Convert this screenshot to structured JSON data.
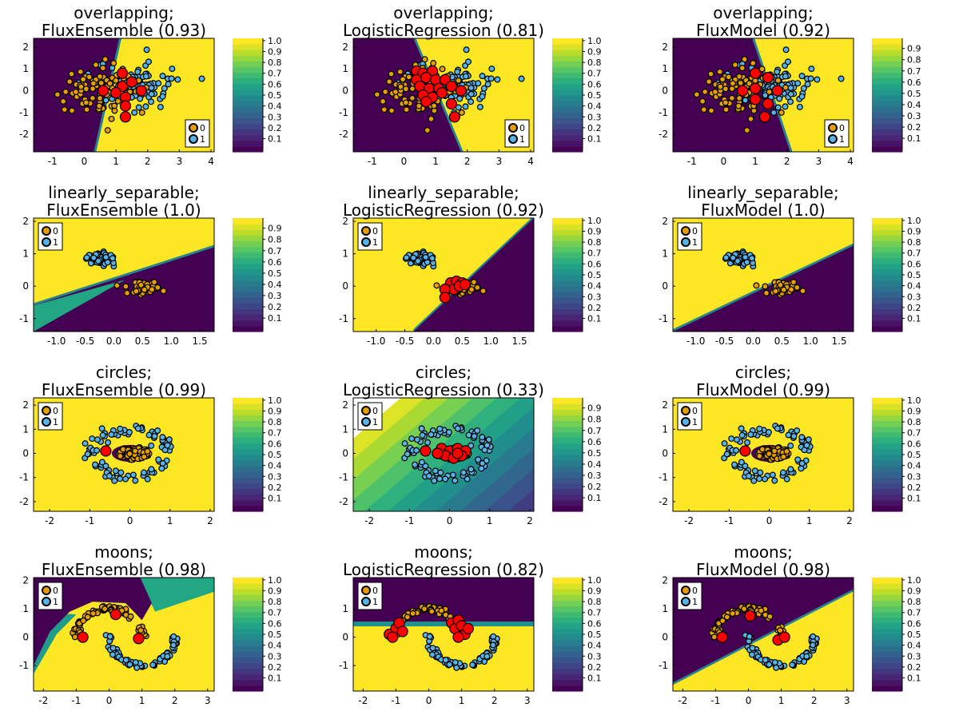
{
  "colors": {
    "class0": "#e69f00",
    "class1": "#56b4e9",
    "highlight": "#ff0000",
    "viridis_dark": "#440154",
    "viridis_yellow": "#fde725"
  },
  "chart_data": [
    {
      "type": "scatter",
      "dataset": "overlapping",
      "model": "FluxEnsemble",
      "title_line1": "overlapping;",
      "title_line2": "FluxEnsemble (0.93)",
      "xlim": [
        -1.6,
        4.1
      ],
      "ylim": [
        -2.8,
        2.4
      ],
      "xticks": [
        -1,
        0,
        1,
        2,
        3,
        4
      ],
      "yticks": [
        -2,
        -1,
        0,
        1,
        2
      ],
      "legend_loc": "bottom-right",
      "legend": [
        "0",
        "1"
      ],
      "colorbar_ticks": [
        "1.0",
        "0.9",
        "0.8",
        "0.7",
        "0.6",
        "0.5",
        "0.4",
        "0.3",
        "0.2",
        "0.1"
      ],
      "colorbar_max": 1.0,
      "boundary": {
        "kind": "line",
        "p1": [
          1.1,
          2.4
        ],
        "p2": [
          0.3,
          -2.8
        ],
        "side0": "left"
      },
      "highlights": [
        [
          1.2,
          0.8
        ],
        [
          1.5,
          0.4
        ],
        [
          1.2,
          0.2
        ],
        [
          0.6,
          0
        ],
        [
          1.0,
          -0.1
        ],
        [
          1.3,
          -0.3
        ],
        [
          1.8,
          0
        ],
        [
          1.3,
          -0.7
        ],
        [
          1.3,
          -1.2
        ]
      ]
    },
    {
      "type": "scatter",
      "dataset": "overlapping",
      "model": "LogisticRegression",
      "title_line1": "overlapping;",
      "title_line2": "LogisticRegression (0.81)",
      "xlim": [
        -1.6,
        4.1
      ],
      "ylim": [
        -2.8,
        2.4
      ],
      "xticks": [
        -1,
        0,
        1,
        2,
        3,
        4
      ],
      "yticks": [
        -2,
        -1,
        0,
        1,
        2
      ],
      "legend_loc": "bottom-right",
      "legend": [
        "0",
        "1"
      ],
      "colorbar_ticks": [
        "1.0",
        "0.9",
        "0.8",
        "0.7",
        "0.6",
        "0.5",
        "0.4",
        "0.3",
        "0.2",
        "0.1"
      ],
      "colorbar_max": 1.0,
      "boundary": {
        "kind": "line",
        "p1": [
          0.3,
          2.4
        ],
        "p2": [
          1.8,
          -2.8
        ],
        "side0": "left"
      },
      "highlights": [
        [
          0.4,
          0.9
        ],
        [
          0.6,
          0.8
        ],
        [
          0.9,
          0.9
        ],
        [
          0.4,
          0.5
        ],
        [
          0.7,
          0.6
        ],
        [
          1.0,
          0.5
        ],
        [
          1.3,
          0.5
        ],
        [
          0.5,
          0.2
        ],
        [
          0.8,
          0.1
        ],
        [
          1.1,
          0.1
        ],
        [
          0.6,
          -0.2
        ],
        [
          0.9,
          -0.3
        ],
        [
          1.2,
          -0.1
        ],
        [
          1.5,
          0.2
        ],
        [
          1.8,
          0
        ],
        [
          0.7,
          -0.5
        ],
        [
          1.5,
          -0.6
        ],
        [
          1.6,
          -1.2
        ]
      ]
    },
    {
      "type": "scatter",
      "dataset": "overlapping",
      "model": "FluxModel",
      "title_line1": "overlapping;",
      "title_line2": "FluxModel (0.92)",
      "xlim": [
        -1.6,
        4.1
      ],
      "ylim": [
        -2.8,
        2.4
      ],
      "xticks": [
        -1,
        0,
        1,
        2,
        3,
        4
      ],
      "yticks": [
        -2,
        -1,
        0,
        1,
        2
      ],
      "legend_loc": "bottom-right",
      "legend": [
        "0",
        "1"
      ],
      "colorbar_ticks": [
        "0.9",
        "0.8",
        "0.7",
        "0.6",
        "0.5",
        "0.4",
        "0.3",
        "0.2",
        "0.1"
      ],
      "colorbar_max": 0.97,
      "boundary": {
        "kind": "line",
        "p1": [
          0.9,
          2.4
        ],
        "p2": [
          2.1,
          -2.8
        ],
        "side0": "left"
      },
      "highlights": [
        [
          1.0,
          0.8
        ],
        [
          1.4,
          0.6
        ],
        [
          0.6,
          0
        ],
        [
          1.0,
          0.1
        ],
        [
          1.7,
          0
        ],
        [
          1.0,
          -0.4
        ],
        [
          1.4,
          -0.6
        ],
        [
          1.3,
          -1.2
        ]
      ]
    },
    {
      "type": "scatter",
      "dataset": "linearly_separable",
      "model": "FluxEnsemble",
      "title_line1": "linearly_separable;",
      "title_line2": "FluxEnsemble (1.0)",
      "xlim": [
        -1.4,
        1.75
      ],
      "ylim": [
        -1.4,
        2.1
      ],
      "xticks": [
        -1.0,
        -0.5,
        0.0,
        0.5,
        1.0,
        1.5
      ],
      "yticks": [
        -1,
        0,
        1,
        2
      ],
      "legend_loc": "top-left",
      "legend": [
        "0",
        "1"
      ],
      "colorbar_ticks": [
        "0.9",
        "0.8",
        "0.7",
        "0.6",
        "0.5",
        "0.4",
        "0.3",
        "0.2",
        "0.1"
      ],
      "colorbar_max": 0.97,
      "boundary": {
        "kind": "line",
        "p1": [
          -1.4,
          -0.6
        ],
        "p2": [
          1.75,
          1.2
        ],
        "side0": "below"
      },
      "highlights": []
    },
    {
      "type": "scatter",
      "dataset": "linearly_separable",
      "model": "LogisticRegression",
      "title_line1": "linearly_separable;",
      "title_line2": "LogisticRegression (0.92)",
      "xlim": [
        -1.4,
        1.75
      ],
      "ylim": [
        -1.4,
        2.1
      ],
      "xticks": [
        -1.0,
        -0.5,
        0.0,
        0.5,
        1.0,
        1.5
      ],
      "yticks": [
        -1,
        0,
        1,
        2
      ],
      "legend_loc": "top-left",
      "legend": [
        "0",
        "1"
      ],
      "colorbar_ticks": [
        "1.0",
        "0.9",
        "0.8",
        "0.7",
        "0.6",
        "0.5",
        "0.4",
        "0.3",
        "0.2",
        "0.1"
      ],
      "colorbar_max": 1.0,
      "boundary": {
        "kind": "line",
        "p1": [
          -0.35,
          -1.4
        ],
        "p2": [
          1.75,
          2.1
        ],
        "side0": "below"
      },
      "highlights": [
        [
          0.3,
          0.1
        ],
        [
          0.4,
          0.15
        ],
        [
          0.5,
          0.1
        ],
        [
          0.35,
          -0.1
        ],
        [
          0.45,
          0.0
        ],
        [
          0.2,
          -0.1
        ],
        [
          0.55,
          0.05
        ],
        [
          0.2,
          -0.35
        ]
      ]
    },
    {
      "type": "scatter",
      "dataset": "linearly_separable",
      "model": "FluxModel",
      "title_line1": "linearly_separable;",
      "title_line2": "FluxModel (1.0)",
      "xlim": [
        -1.4,
        1.75
      ],
      "ylim": [
        -1.4,
        2.1
      ],
      "xticks": [
        -1.0,
        -0.5,
        0.0,
        0.5,
        1.0,
        1.5
      ],
      "yticks": [
        -1,
        0,
        1,
        2
      ],
      "legend_loc": "top-left",
      "legend": [
        "0",
        "1"
      ],
      "colorbar_ticks": [
        "1.0",
        "0.9",
        "0.8",
        "0.7",
        "0.6",
        "0.5",
        "0.4",
        "0.3",
        "0.2",
        "0.1"
      ],
      "colorbar_max": 1.0,
      "boundary": {
        "kind": "line",
        "p1": [
          -1.4,
          -1.4
        ],
        "p2": [
          1.75,
          1.25
        ],
        "side0": "below"
      },
      "highlights": []
    },
    {
      "type": "scatter",
      "dataset": "circles",
      "model": "FluxEnsemble",
      "title_line1": "circles;",
      "title_line2": "FluxEnsemble (0.99)",
      "xlim": [
        -2.4,
        2.1
      ],
      "ylim": [
        -2.4,
        2.3
      ],
      "xticks": [
        -2,
        -1,
        0,
        1,
        2
      ],
      "yticks": [
        -2,
        -1,
        0,
        1,
        2
      ],
      "legend_loc": "top-left",
      "legend": [
        "0",
        "1"
      ],
      "colorbar_ticks": [
        "1.0",
        "0.9",
        "0.8",
        "0.7",
        "0.6",
        "0.5",
        "0.4",
        "0.3",
        "0.2",
        "0.1"
      ],
      "colorbar_max": 1.0,
      "boundary": {
        "kind": "ellipse",
        "cx": 0.0,
        "cy": 0.0,
        "rx": 0.45,
        "ry": 0.35,
        "inside0": true
      },
      "highlights": [
        [
          -0.6,
          0.1
        ]
      ]
    },
    {
      "type": "scatter",
      "dataset": "circles",
      "model": "LogisticRegression",
      "title_line1": "circles;",
      "title_line2": "LogisticRegression (0.33)",
      "xlim": [
        -2.4,
        2.1
      ],
      "ylim": [
        -2.4,
        2.3
      ],
      "xticks": [
        -2,
        -1,
        0,
        1,
        2
      ],
      "yticks": [
        -2,
        -1,
        0,
        1,
        2
      ],
      "legend_loc": "top-left",
      "legend": [
        "0",
        "1"
      ],
      "colorbar_ticks": [
        "0.9",
        "0.8",
        "0.7",
        "0.6",
        "0.5",
        "0.4",
        "0.3",
        "0.2",
        "0.1"
      ],
      "colorbar_max": 0.97,
      "boundary": {
        "kind": "gradient"
      },
      "highlights": [
        [
          -0.6,
          0.1
        ],
        [
          -0.2,
          0.2
        ],
        [
          0.0,
          0.1
        ],
        [
          0.2,
          0.2
        ],
        [
          0.4,
          0.1
        ],
        [
          -0.1,
          -0.1
        ],
        [
          0.1,
          -0.2
        ],
        [
          0.3,
          -0.1
        ],
        [
          -0.3,
          0.0
        ],
        [
          0.2,
          0.0
        ]
      ]
    },
    {
      "type": "scatter",
      "dataset": "circles",
      "model": "FluxModel",
      "title_line1": "circles;",
      "title_line2": "FluxModel (0.99)",
      "xlim": [
        -2.4,
        2.1
      ],
      "ylim": [
        -2.4,
        2.3
      ],
      "xticks": [
        -2,
        -1,
        0,
        1,
        2
      ],
      "yticks": [
        -2,
        -1,
        0,
        1,
        2
      ],
      "legend_loc": "top-left",
      "legend": [
        "0",
        "1"
      ],
      "colorbar_ticks": [
        "1.0",
        "0.9",
        "0.8",
        "0.7",
        "0.6",
        "0.5",
        "0.4",
        "0.3",
        "0.2",
        "0.1"
      ],
      "colorbar_max": 1.0,
      "boundary": {
        "kind": "ellipse",
        "cx": 0.0,
        "cy": 0.0,
        "rx": 0.45,
        "ry": 0.35,
        "inside0": true
      },
      "highlights": [
        [
          -0.6,
          0.1
        ]
      ]
    },
    {
      "type": "scatter",
      "dataset": "moons",
      "model": "FluxEnsemble",
      "title_line1": "moons;",
      "title_line2": "FluxEnsemble (0.98)",
      "xlim": [
        -2.3,
        3.2
      ],
      "ylim": [
        -1.9,
        2.1
      ],
      "xticks": [
        -2,
        -1,
        0,
        1,
        2,
        3
      ],
      "yticks": [
        -1,
        0,
        1,
        2
      ],
      "legend_loc": "top-left",
      "legend": [
        "0",
        "1"
      ],
      "colorbar_ticks": [
        "1.0",
        "0.9",
        "0.8",
        "0.7",
        "0.6",
        "0.5",
        "0.4",
        "0.3",
        "0.2",
        "0.1"
      ],
      "colorbar_max": 1.0,
      "boundary": {
        "kind": "moons"
      },
      "highlights": [
        [
          -0.8,
          0.0
        ],
        [
          0.2,
          0.8
        ],
        [
          0.9,
          -0.05
        ]
      ]
    },
    {
      "type": "scatter",
      "dataset": "moons",
      "model": "LogisticRegression",
      "title_line1": "moons;",
      "title_line2": "LogisticRegression (0.82)",
      "xlim": [
        -2.3,
        3.2
      ],
      "ylim": [
        -1.9,
        2.1
      ],
      "xticks": [
        -2,
        -1,
        0,
        1,
        2,
        3
      ],
      "yticks": [
        -1,
        0,
        1
      ],
      "legend_loc": "top-left",
      "legend": [
        "0",
        "1"
      ],
      "colorbar_ticks": [
        "1.0",
        "0.9",
        "0.8",
        "0.7",
        "0.6",
        "0.5",
        "0.4",
        "0.3",
        "0.2",
        "0.1"
      ],
      "colorbar_max": 1.0,
      "boundary": {
        "kind": "band",
        "y": 0.55
      },
      "highlights": [
        [
          -1.2,
          0.1
        ],
        [
          -1.0,
          0.3
        ],
        [
          -0.9,
          0.5
        ],
        [
          -1.1,
          0.0
        ],
        [
          -0.8,
          0.2
        ],
        [
          0.7,
          0.5
        ],
        [
          0.8,
          0.3
        ],
        [
          0.9,
          0.6
        ],
        [
          1.0,
          0.4
        ],
        [
          1.1,
          0.1
        ],
        [
          0.9,
          0.0
        ],
        [
          1.2,
          0.3
        ]
      ]
    },
    {
      "type": "scatter",
      "dataset": "moons",
      "model": "FluxModel",
      "title_line1": "moons;",
      "title_line2": "FluxModel (0.98)",
      "xlim": [
        -2.3,
        3.2
      ],
      "ylim": [
        -1.9,
        2.1
      ],
      "xticks": [
        -2,
        -1,
        0,
        1,
        2,
        3
      ],
      "yticks": [
        -1,
        0,
        1,
        2
      ],
      "legend_loc": "top-left",
      "legend": [
        "0",
        "1"
      ],
      "colorbar_ticks": [
        "1.0",
        "0.9",
        "0.8",
        "0.7",
        "0.6",
        "0.5",
        "0.4",
        "0.3",
        "0.2",
        "0.1"
      ],
      "colorbar_max": 1.0,
      "boundary": {
        "kind": "line",
        "p1": [
          -2.3,
          -1.6
        ],
        "p2": [
          3.2,
          1.7
        ],
        "side0": "above"
      },
      "highlights": [
        [
          -0.8,
          0.0
        ],
        [
          0.05,
          0.75
        ],
        [
          0.9,
          -0.1
        ],
        [
          1.1,
          0.0
        ]
      ]
    }
  ]
}
